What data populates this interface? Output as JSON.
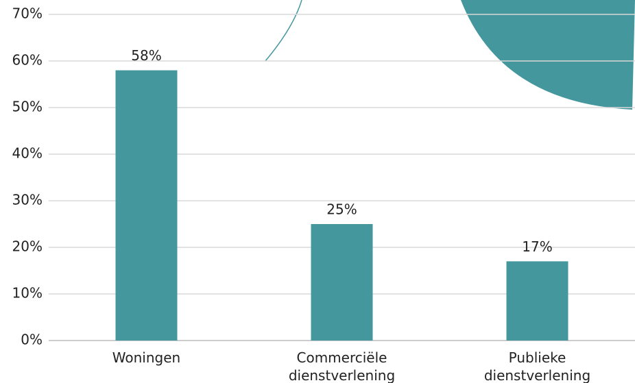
{
  "chart_data": {
    "type": "bar",
    "categories": [
      "Woningen",
      "Commerciële dienstverlening",
      "Publieke dienstverlening"
    ],
    "values": [
      58,
      25,
      17
    ],
    "value_labels": [
      "58%",
      "25%",
      "17%"
    ],
    "color": "#45979e",
    "ylim": [
      0,
      70
    ],
    "yticks": [
      {
        "value": 0,
        "label": "0%"
      },
      {
        "value": 10,
        "label": "10%"
      },
      {
        "value": 20,
        "label": "20%"
      },
      {
        "value": 30,
        "label": "30%"
      },
      {
        "value": 40,
        "label": "40%"
      },
      {
        "value": 50,
        "label": "50%"
      },
      {
        "value": 60,
        "label": "60%"
      },
      {
        "value": 70,
        "label": "70%"
      }
    ],
    "grid": true
  }
}
